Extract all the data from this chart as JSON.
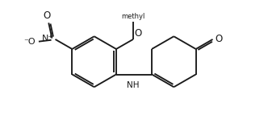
{
  "background_color": "#ffffff",
  "line_color": "#1a1a1a",
  "line_width": 1.35,
  "font_size": 7.5,
  "figsize": [
    3.32,
    1.48
  ],
  "dpi": 100,
  "xlim": [
    -0.5,
    10.5
  ],
  "ylim": [
    0.2,
    5.6
  ]
}
